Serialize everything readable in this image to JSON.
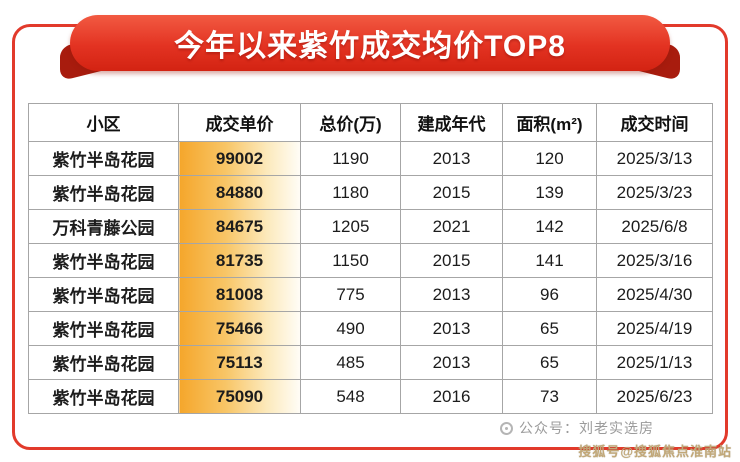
{
  "banner": {
    "title": "今年以来紫竹成交均价TOP8"
  },
  "table": {
    "headers": [
      "小区",
      "成交单价",
      "总价(万)",
      "建成年代",
      "面积(m²)",
      "成交时间"
    ],
    "rows": [
      [
        "紫竹半岛花园",
        "99002",
        "1190",
        "2013",
        "120",
        "2025/3/13"
      ],
      [
        "紫竹半岛花园",
        "84880",
        "1180",
        "2015",
        "139",
        "2025/3/23"
      ],
      [
        "万科青藤公园",
        "84675",
        "1205",
        "2021",
        "142",
        "2025/6/8"
      ],
      [
        "紫竹半岛花园",
        "81735",
        "1150",
        "2015",
        "141",
        "2025/3/16"
      ],
      [
        "紫竹半岛花园",
        "81008",
        "775",
        "2013",
        "96",
        "2025/4/30"
      ],
      [
        "紫竹半岛花园",
        "75466",
        "490",
        "2013",
        "65",
        "2025/4/19"
      ],
      [
        "紫竹半岛花园",
        "75113",
        "485",
        "2013",
        "65",
        "2025/1/13"
      ],
      [
        "紫竹半岛花园",
        "75090",
        "548",
        "2016",
        "73",
        "2025/6/23"
      ]
    ]
  },
  "footer": {
    "watermark": "公众号：刘老实选房",
    "badge": "搜狐号@搜狐焦点淮南站"
  },
  "colors": {
    "frame_red": "#e23a2b",
    "ribbon_red": "#e33322",
    "ribbon_fold_dark_red": "#a81c0e",
    "price_bar_orange": "#f5a62b",
    "table_border_gray": "#a6a6a6",
    "watermark_gray": "#9b9b9b",
    "badge_tan": "#c2a878"
  },
  "chart_data": {
    "type": "table",
    "title": "今年以来紫竹成交均价TOP8",
    "columns": [
      "小区",
      "成交单价",
      "总价(万)",
      "建成年代",
      "面积(m²)",
      "成交时间"
    ],
    "rows": [
      [
        "紫竹半岛花园",
        99002,
        1190,
        2013,
        120,
        "2025/3/13"
      ],
      [
        "紫竹半岛花园",
        84880,
        1180,
        2015,
        139,
        "2025/3/23"
      ],
      [
        "万科青藤公园",
        84675,
        1205,
        2021,
        142,
        "2025/6/8"
      ],
      [
        "紫竹半岛花园",
        81735,
        1150,
        2015,
        141,
        "2025/3/16"
      ],
      [
        "紫竹半岛花园",
        81008,
        775,
        2013,
        96,
        "2025/4/30"
      ],
      [
        "紫竹半岛花园",
        75466,
        490,
        2013,
        65,
        "2025/4/19"
      ],
      [
        "紫竹半岛花园",
        75113,
        485,
        2013,
        65,
        "2025/1/13"
      ],
      [
        "紫竹半岛花园",
        75090,
        548,
        2016,
        73,
        "2025/6/23"
      ]
    ],
    "highlighted_column": "成交单价",
    "highlight_style": "orange gradient bar behind values",
    "legend_position": "none",
    "grid": true
  }
}
